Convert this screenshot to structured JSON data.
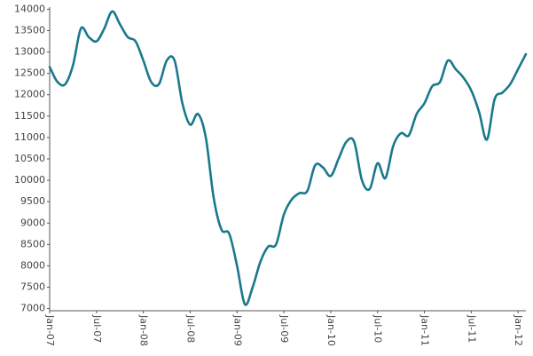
{
  "chart_data": {
    "type": "line",
    "categories": [
      "Jan-07",
      null,
      null,
      null,
      null,
      null,
      "Jul-07",
      null,
      null,
      null,
      null,
      null,
      "Jan-08",
      null,
      null,
      null,
      null,
      null,
      "Jul-08",
      null,
      null,
      null,
      null,
      null,
      "Jan-09",
      null,
      null,
      null,
      null,
      null,
      "Jul-09",
      null,
      null,
      null,
      null,
      null,
      "Jan-10",
      null,
      null,
      null,
      null,
      null,
      "Jul-10",
      null,
      null,
      null,
      null,
      null,
      "Jan-11",
      null,
      null,
      null,
      null,
      null,
      "Jul-11",
      null,
      null,
      null,
      null,
      null,
      "Jan-12",
      null
    ],
    "series": [
      {
        "color": "#19798c",
        "values": [
          12650,
          12300,
          12250,
          12700,
          13550,
          13350,
          13250,
          13550,
          13950,
          13650,
          13350,
          13250,
          12800,
          12300,
          12250,
          12800,
          12800,
          11800,
          11300,
          11550,
          11000,
          9600,
          8850,
          8750,
          8000,
          7100,
          7500,
          8100,
          8450,
          8500,
          9200,
          9550,
          9700,
          9750,
          10350,
          10300,
          10100,
          10500,
          10900,
          10900,
          10000,
          9800,
          10400,
          10050,
          10800,
          11100,
          11050,
          11550,
          11800,
          12200,
          12300,
          12800,
          12600,
          12400,
          12100,
          11600,
          10950,
          11900,
          12050,
          12250,
          12600,
          12950
        ]
      }
    ],
    "ylim": [
      6950,
      14050
    ],
    "yticks": [
      7000,
      7500,
      8000,
      8500,
      9000,
      9500,
      10000,
      10500,
      11000,
      11500,
      12000,
      12500,
      13000,
      13500,
      14000
    ],
    "grid": false
  }
}
